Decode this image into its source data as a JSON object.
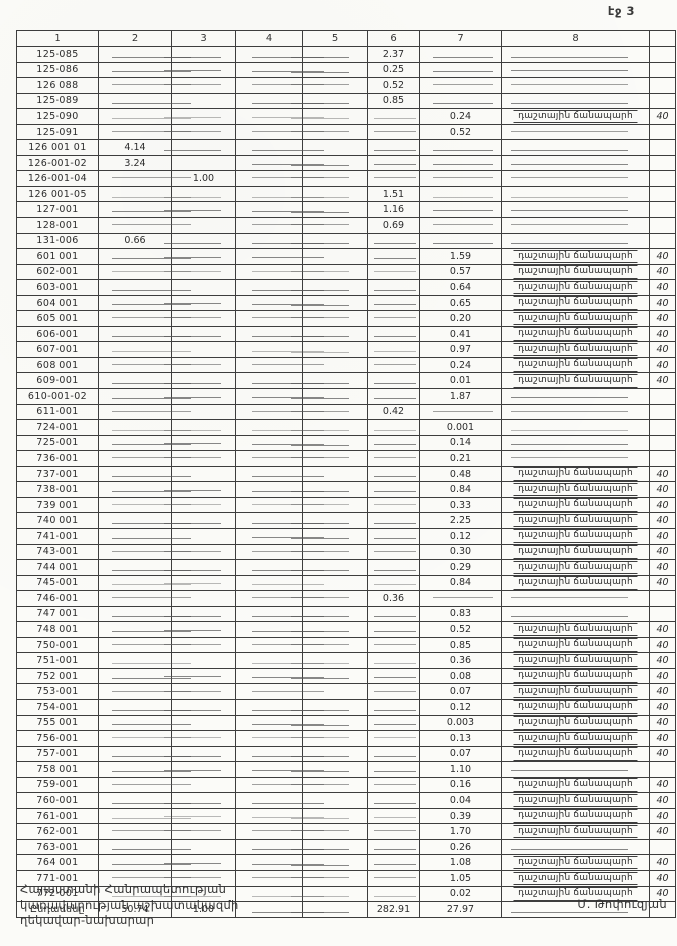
{
  "page": {
    "label": "էջ 3"
  },
  "table": {
    "headers": [
      "1",
      "2",
      "3",
      "4",
      "5",
      "6",
      "7",
      "8"
    ],
    "note_text": "դաշտային ճանապարհ",
    "mark_text": "40",
    "rows": [
      [
        "125-085",
        "",
        "",
        "",
        "",
        "2.37",
        "",
        0
      ],
      [
        "125-086",
        "",
        "",
        "",
        "",
        "0.25",
        "",
        0
      ],
      [
        "126 088",
        "",
        "",
        "",
        "",
        "0.52",
        "",
        0
      ],
      [
        "125-089",
        "",
        "",
        "",
        "",
        "0.85",
        "",
        0
      ],
      [
        "125-090",
        "",
        "",
        "",
        "",
        "",
        "0.24",
        1
      ],
      [
        "125-091",
        "",
        "",
        "",
        "",
        "",
        "0.52",
        0
      ],
      [
        "126 001 01",
        "4.14",
        "",
        "",
        "",
        "",
        "",
        0
      ],
      [
        "126-001-02",
        "3.24",
        "",
        "",
        "",
        "",
        "",
        0
      ],
      [
        "126-001-04",
        "",
        "1.00",
        "",
        "",
        "",
        "",
        0
      ],
      [
        "126 001-05",
        "",
        "",
        "",
        "",
        "1.51",
        "",
        0
      ],
      [
        "127-001",
        "",
        "",
        "",
        "",
        "1.16",
        "",
        0
      ],
      [
        "128-001",
        "",
        "",
        "",
        "",
        "0.69",
        "",
        0
      ],
      [
        "131-006",
        "0.66",
        "",
        "",
        "",
        "",
        "",
        0
      ],
      [
        "601 001",
        "",
        "",
        "",
        "",
        "",
        "1.59",
        1
      ],
      [
        "602-001",
        "",
        "",
        "",
        "",
        "",
        "0.57",
        1
      ],
      [
        "603-001",
        "",
        "",
        "",
        "",
        "",
        "0.64",
        1
      ],
      [
        "604 001",
        "",
        "",
        "",
        "",
        "",
        "0.65",
        1
      ],
      [
        "605 001",
        "",
        "",
        "",
        "",
        "",
        "0.20",
        1
      ],
      [
        "606-001",
        "",
        "",
        "",
        "",
        "",
        "0.41",
        1
      ],
      [
        "607-001",
        "",
        "",
        "",
        "",
        "",
        "0.97",
        1
      ],
      [
        "608 001",
        "",
        "",
        "",
        "",
        "",
        "0.24",
        1
      ],
      [
        "609-001",
        "",
        "",
        "",
        "",
        "",
        "0.01",
        1
      ],
      [
        "610-001-02",
        "",
        "",
        "",
        "",
        "",
        "1.87",
        0
      ],
      [
        "611-001",
        "",
        "",
        "",
        "",
        "0.42",
        "",
        0
      ],
      [
        "724-001",
        "",
        "",
        "",
        "",
        "",
        "0.001",
        0
      ],
      [
        "725-001",
        "",
        "",
        "",
        "",
        "",
        "0.14",
        0
      ],
      [
        "736-001",
        "",
        "",
        "",
        "",
        "",
        "0.21",
        0
      ],
      [
        "737-001",
        "",
        "",
        "",
        "",
        "",
        "0.48",
        1
      ],
      [
        "738-001",
        "",
        "",
        "",
        "",
        "",
        "0.84",
        1
      ],
      [
        "739 001",
        "",
        "",
        "",
        "",
        "",
        "0.33",
        1
      ],
      [
        "740 001",
        "",
        "",
        "",
        "",
        "",
        "2.25",
        1
      ],
      [
        "741-001",
        "",
        "",
        "",
        "",
        "",
        "0.12",
        1
      ],
      [
        "743-001",
        "",
        "",
        "",
        "",
        "",
        "0.30",
        1
      ],
      [
        "744 001",
        "",
        "",
        "",
        "",
        "",
        "0.29",
        1
      ],
      [
        "745-001",
        "",
        "",
        "",
        "",
        "",
        "0.84",
        1
      ],
      [
        "746-001",
        "",
        "",
        "",
        "",
        "0.36",
        "",
        0
      ],
      [
        "747 001",
        "",
        "",
        "",
        "",
        "",
        "0.83",
        0
      ],
      [
        "748 001",
        "",
        "",
        "",
        "",
        "",
        "0.52",
        1
      ],
      [
        "750-001",
        "",
        "",
        "",
        "",
        "",
        "0.85",
        1
      ],
      [
        "751-001",
        "",
        "",
        "",
        "",
        "",
        "0.36",
        1
      ],
      [
        "752 001",
        "",
        "",
        "",
        "",
        "",
        "0.08",
        1
      ],
      [
        "753-001",
        "",
        "",
        "",
        "",
        "",
        "0.07",
        1
      ],
      [
        "754-001",
        "",
        "",
        "",
        "",
        "",
        "0.12",
        1
      ],
      [
        "755 001",
        "",
        "",
        "",
        "",
        "",
        "0.003",
        1
      ],
      [
        "756-001",
        "",
        "",
        "",
        "",
        "",
        "0.13",
        1
      ],
      [
        "757-001",
        "",
        "",
        "",
        "",
        "",
        "0.07",
        1
      ],
      [
        "758 001",
        "",
        "",
        "",
        "",
        "",
        "1.10",
        0
      ],
      [
        "759-001",
        "",
        "",
        "",
        "",
        "",
        "0.16",
        1
      ],
      [
        "760-001",
        "",
        "",
        "",
        "",
        "",
        "0.04",
        1
      ],
      [
        "761-001",
        "",
        "",
        "",
        "",
        "",
        "0.39",
        1
      ],
      [
        "762-001",
        "",
        "",
        "",
        "",
        "",
        "1.70",
        1
      ],
      [
        "763-001",
        "",
        "",
        "",
        "",
        "",
        "0.26",
        0
      ],
      [
        "764 001",
        "",
        "",
        "",
        "",
        "",
        "1.08",
        1
      ],
      [
        "771-001",
        "",
        "",
        "",
        "",
        "",
        "1.05",
        1
      ],
      [
        "772-001",
        "",
        "",
        "",
        "",
        "",
        "0.02",
        1
      ]
    ],
    "total": {
      "label": "Ընդամենը",
      "c2": "50.74",
      "c3": "1.00",
      "c6": "282.91",
      "c7": "27.97"
    }
  },
  "footer": {
    "line1": "Հայաստանի Հանրապետության",
    "line2": "կառավարության աշխատակազմի",
    "line3": "ղեկավար-նախարար",
    "signature": "Մ. Թոփուզյան"
  },
  "colors": {
    "paper": "#fbfbf8",
    "ink": "#2e2e2e",
    "rule": "#3d3d3d"
  }
}
